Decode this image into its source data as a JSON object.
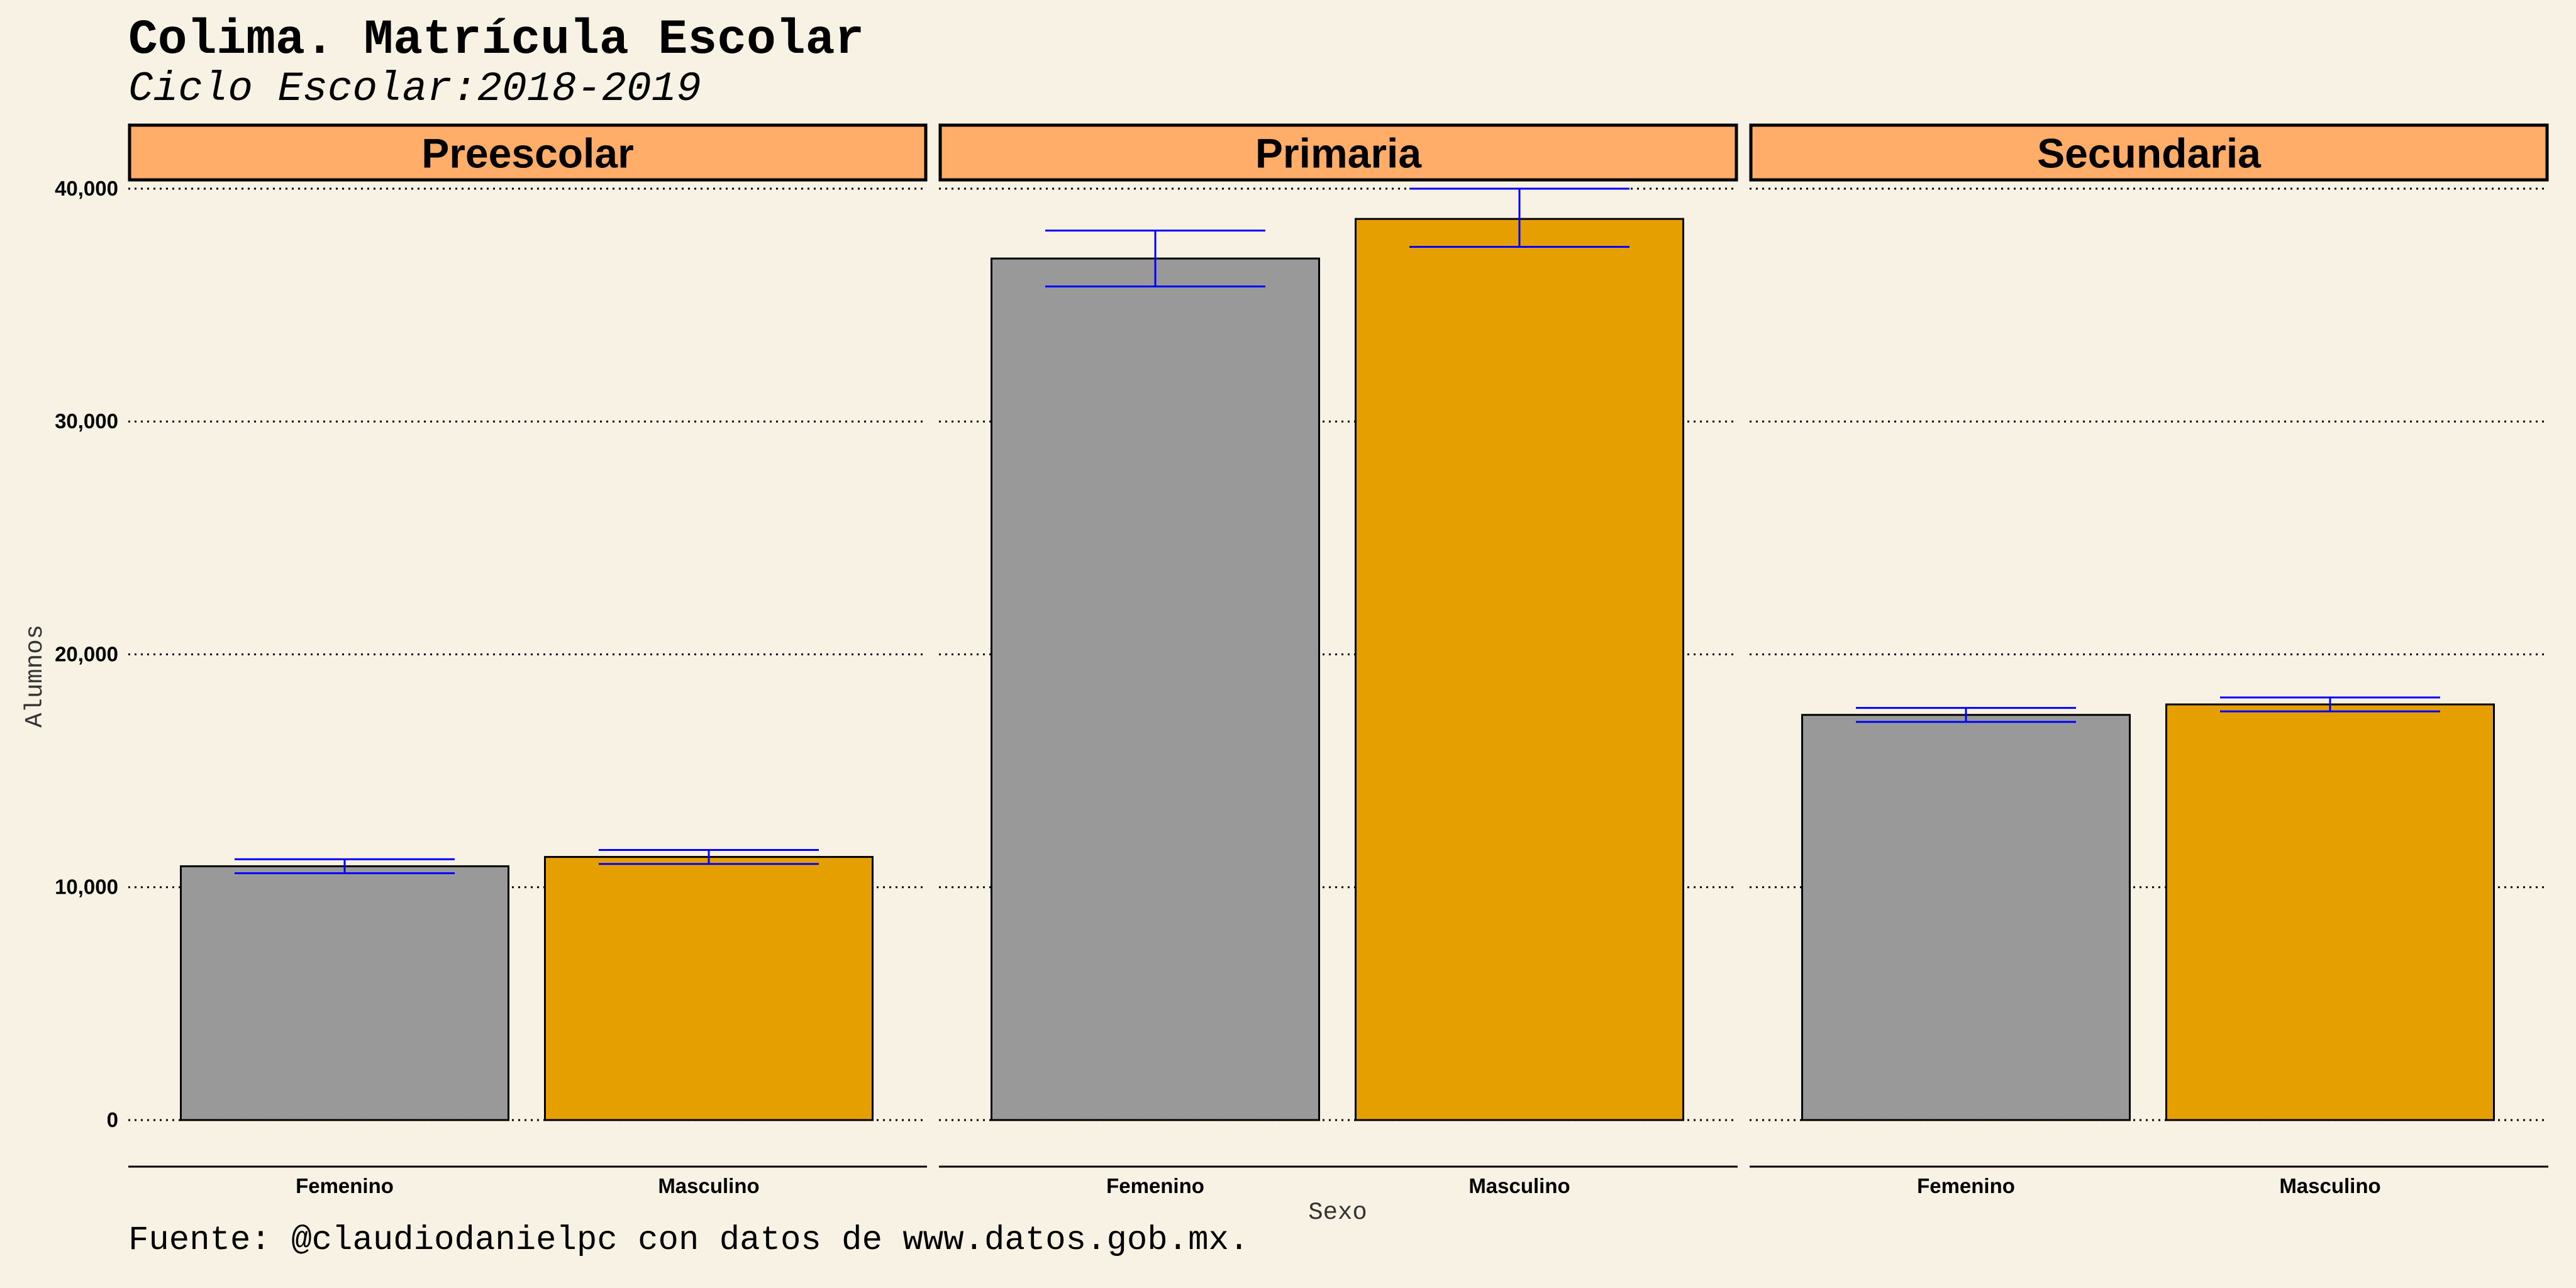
{
  "title": "Colima. Matrícula Escolar",
  "subtitle": "Ciclo Escolar:2018-2019",
  "caption": "Fuente: @claudiodanielpc con datos de www.datos.gob.mx.",
  "colors": {
    "background": "#f8f2e4",
    "strip_fill": "#ffad69",
    "femenino": "#999999",
    "masculino": "#e69f00",
    "error_bar": "#0000ff"
  },
  "chart_data": {
    "type": "bar",
    "xlabel": "Sexo",
    "ylabel": "Alumnos",
    "ylim": [
      -2000,
      40000
    ],
    "y_ticks": [
      0,
      10000,
      20000,
      30000,
      40000
    ],
    "y_tick_labels": [
      "0",
      "10,000",
      "20,000",
      "30,000",
      "40,000"
    ],
    "categories": [
      "Femenino",
      "Masculino"
    ],
    "facets": [
      {
        "name": "Preescolar",
        "values": [
          10900,
          11300
        ],
        "error_low": [
          10600,
          11000
        ],
        "error_high": [
          11200,
          11600
        ]
      },
      {
        "name": "Primaria",
        "values": [
          37000,
          38700
        ],
        "error_low": [
          35800,
          37500
        ],
        "error_high": [
          38200,
          40000
        ]
      },
      {
        "name": "Secundaria",
        "values": [
          17400,
          17850
        ],
        "error_low": [
          17100,
          17550
        ],
        "error_high": [
          17700,
          18150
        ]
      }
    ]
  }
}
